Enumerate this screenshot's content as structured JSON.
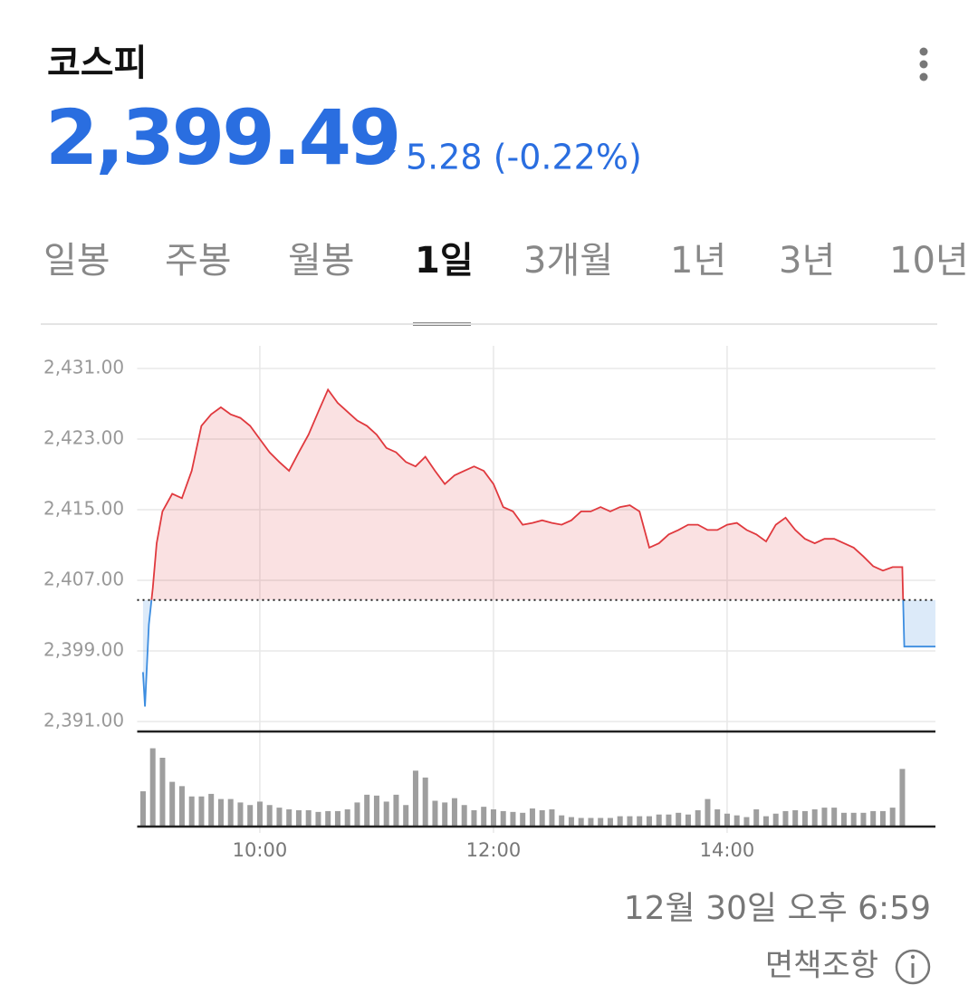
{
  "header": {
    "title": "코스피",
    "price": "2,399.49",
    "change": "5.28 (-0.22%)"
  },
  "tabs": [
    "일봉",
    "주봉",
    "월봉",
    "1일",
    "3개월",
    "1년",
    "3년",
    "10년"
  ],
  "selected_tab": 3,
  "chart_data": {
    "type": "line",
    "x": [
      540,
      541,
      543,
      545,
      547,
      550,
      555,
      560,
      565,
      570,
      575,
      580,
      585,
      590,
      595,
      600,
      605,
      610,
      615,
      620,
      625,
      630,
      635,
      640,
      645,
      650,
      655,
      660,
      665,
      670,
      675,
      680,
      685,
      690,
      695,
      700,
      705,
      710,
      715,
      720,
      725,
      730,
      735,
      740,
      745,
      750,
      755,
      760,
      765,
      770,
      775,
      780,
      785,
      790,
      795,
      800,
      805,
      810,
      815,
      820,
      825,
      830,
      835,
      840,
      845,
      850,
      855,
      860,
      865,
      870,
      875,
      880,
      885,
      890,
      895,
      900,
      905,
      910,
      915,
      920,
      925,
      930,
      931,
      947
    ],
    "values": [
      2396.6,
      2392.7,
      2402.0,
      2406.1,
      2411.2,
      2414.8,
      2416.8,
      2416.3,
      2419.4,
      2424.5,
      2425.8,
      2426.6,
      2425.8,
      2425.4,
      2424.5,
      2423.0,
      2421.5,
      2420.4,
      2419.4,
      2421.5,
      2423.5,
      2426.1,
      2428.6,
      2427.1,
      2426.1,
      2425.1,
      2424.5,
      2423.5,
      2422.0,
      2421.5,
      2420.4,
      2419.9,
      2421.0,
      2419.4,
      2417.9,
      2418.9,
      2419.4,
      2419.9,
      2419.4,
      2417.9,
      2415.3,
      2414.8,
      2413.3,
      2413.5,
      2413.8,
      2413.5,
      2413.3,
      2413.8,
      2414.8,
      2414.8,
      2415.3,
      2414.8,
      2415.3,
      2415.5,
      2414.8,
      2410.7,
      2411.2,
      2412.2,
      2412.7,
      2413.3,
      2413.3,
      2412.7,
      2412.7,
      2413.3,
      2413.5,
      2412.7,
      2412.2,
      2411.4,
      2413.3,
      2414.1,
      2412.7,
      2411.7,
      2411.2,
      2411.7,
      2411.7,
      2411.2,
      2410.7,
      2409.7,
      2408.6,
      2408.1,
      2408.5,
      2408.5,
      2399.49,
      2399.49
    ],
    "baseline": 2404.77,
    "up_color": "#e0393e",
    "down_color": "#3c8de0",
    "ylim": [
      2391,
      2431
    ],
    "yticks": [
      {
        "value": 2431,
        "label": "2,431.00"
      },
      {
        "value": 2423,
        "label": "2,423.00"
      },
      {
        "value": 2415,
        "label": "2,415.00"
      },
      {
        "value": 2407,
        "label": "2,407.00"
      },
      {
        "value": 2399,
        "label": "2,399.00"
      },
      {
        "value": 2391,
        "label": "2,391.00"
      }
    ],
    "xlim": [
      537,
      947
    ],
    "xticks": [
      {
        "value": 600,
        "label": "10:00"
      },
      {
        "value": 720,
        "label": "12:00"
      },
      {
        "value": 840,
        "label": "14:00"
      }
    ],
    "grid": true,
    "volume": {
      "color": "#9e9e9e",
      "ylim": [
        0,
        100
      ],
      "x": [
        540,
        545,
        550,
        555,
        560,
        565,
        570,
        575,
        580,
        585,
        590,
        595,
        600,
        605,
        610,
        615,
        620,
        625,
        630,
        635,
        640,
        645,
        650,
        655,
        660,
        665,
        670,
        675,
        680,
        685,
        690,
        695,
        700,
        705,
        710,
        715,
        720,
        725,
        730,
        735,
        740,
        745,
        750,
        755,
        760,
        765,
        770,
        775,
        780,
        785,
        790,
        795,
        800,
        805,
        810,
        815,
        820,
        825,
        830,
        835,
        840,
        845,
        850,
        855,
        860,
        865,
        870,
        875,
        880,
        885,
        890,
        895,
        900,
        905,
        910,
        915,
        920,
        925,
        930
      ],
      "values": [
        41,
        91,
        80,
        52,
        47,
        35,
        35,
        38,
        32,
        32,
        28,
        25,
        29,
        25,
        22,
        20,
        19,
        19,
        17,
        18,
        18,
        20,
        28,
        37,
        36,
        29,
        37,
        25,
        65,
        57,
        30,
        28,
        33,
        25,
        19,
        23,
        20,
        18,
        17,
        16,
        21,
        19,
        20,
        13,
        11,
        10,
        10,
        10,
        10,
        12,
        12,
        12,
        12,
        14,
        14,
        16,
        14,
        19,
        32,
        20,
        15,
        13,
        11,
        20,
        12,
        15,
        18,
        19,
        18,
        20,
        22,
        22,
        16,
        16,
        16,
        18,
        18,
        22,
        67
      ]
    }
  },
  "footer": {
    "timestamp": "12월 30일 오후 6:59",
    "disclaimer": "면책조항"
  }
}
